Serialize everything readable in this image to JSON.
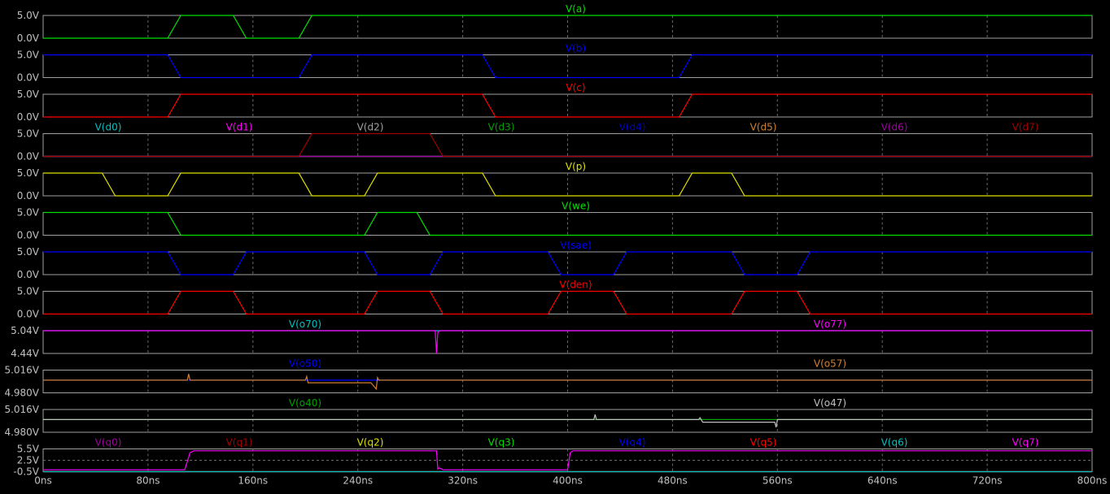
{
  "chart_data": {
    "type": "line",
    "x_unit": "ns",
    "x_range": [
      0,
      800
    ],
    "x_ticks": [
      "0ns",
      "80ns",
      "160ns",
      "240ns",
      "320ns",
      "400ns",
      "480ns",
      "560ns",
      "640ns",
      "720ns",
      "800ns"
    ],
    "grid": true,
    "panes": [
      {
        "y_ticks": [
          "5.0V",
          "0.0V"
        ],
        "ylim": [
          0,
          5
        ],
        "traces": [
          {
            "label": "V(a)",
            "color": "#00e000",
            "x": [
              0,
              95,
              105,
              145,
              155,
              195,
              205,
              800
            ],
            "y": [
              0,
              0,
              5,
              5,
              0,
              0,
              5,
              5
            ]
          }
        ]
      },
      {
        "y_ticks": [
          "5.0V",
          "0.0V"
        ],
        "ylim": [
          0,
          5
        ],
        "traces": [
          {
            "label": "V(b)",
            "color": "#0000ff",
            "x": [
              0,
              95,
              105,
              195,
              205,
              335,
              345,
              485,
              495,
              800
            ],
            "y": [
              5,
              5,
              0,
              0,
              5,
              5,
              0,
              0,
              5,
              5
            ]
          }
        ]
      },
      {
        "y_ticks": [
          "5.0V",
          "0.0V"
        ],
        "ylim": [
          0,
          5
        ],
        "traces": [
          {
            "label": "V(c)",
            "color": "#ff0000",
            "x": [
              0,
              95,
              105,
              335,
              345,
              485,
              495,
              800
            ],
            "y": [
              0,
              0,
              5,
              5,
              0,
              0,
              5,
              5
            ]
          }
        ]
      },
      {
        "y_ticks": [
          "5.0V",
          "0.0V"
        ],
        "ylim": [
          0,
          5
        ],
        "traces": [
          {
            "label": "V(d0)",
            "color": "#00c0c0",
            "x": [
              0,
              800
            ],
            "y": [
              0,
              0
            ]
          },
          {
            "label": "V(d1)",
            "color": "#ff00ff",
            "x": [
              0,
              800
            ],
            "y": [
              0,
              0
            ]
          },
          {
            "label": "V(d2)",
            "color": "#a0a0a0",
            "x": [
              0,
              800
            ],
            "y": [
              0,
              0
            ]
          },
          {
            "label": "V(d3)",
            "color": "#00a000",
            "x": [
              0,
              800
            ],
            "y": [
              0,
              0
            ]
          },
          {
            "label": "V(d4)",
            "color": "#0000c0",
            "x": [
              0,
              800
            ],
            "y": [
              0,
              0
            ]
          },
          {
            "label": "V(d5)",
            "color": "#d08030",
            "x": [
              0,
              800
            ],
            "y": [
              0,
              0
            ]
          },
          {
            "label": "V(d6)",
            "color": "#a000a0",
            "x": [
              0,
              800
            ],
            "y": [
              0,
              0
            ]
          },
          {
            "label": "V(d7)",
            "color": "#a00000",
            "x": [
              0,
              195,
              205,
              295,
              305,
              800
            ],
            "y": [
              0,
              0,
              5,
              5,
              0,
              0
            ]
          }
        ]
      },
      {
        "y_ticks": [
          "5.0V",
          "0.0V"
        ],
        "ylim": [
          0,
          5
        ],
        "traces": [
          {
            "label": "V(p)",
            "color": "#e0e000",
            "x": [
              0,
              45,
              55,
              95,
              105,
              195,
              205,
              245,
              255,
              335,
              345,
              485,
              495,
              525,
              535,
              800
            ],
            "y": [
              5,
              5,
              0,
              0,
              5,
              5,
              0,
              0,
              5,
              5,
              0,
              0,
              5,
              5,
              0,
              0
            ]
          }
        ]
      },
      {
        "y_ticks": [
          "5.0V",
          "0.0V"
        ],
        "ylim": [
          0,
          5
        ],
        "traces": [
          {
            "label": "V(we)",
            "color": "#00e000",
            "x": [
              0,
              95,
              105,
              245,
              255,
              285,
              295,
              800
            ],
            "y": [
              5,
              5,
              0,
              0,
              5,
              5,
              0,
              0
            ]
          }
        ]
      },
      {
        "y_ticks": [
          "5.0V",
          "0.0V"
        ],
        "ylim": [
          0,
          5
        ],
        "traces": [
          {
            "label": "V(sae)",
            "color": "#0000ff",
            "x": [
              0,
              95,
              105,
              145,
              155,
              245,
              255,
              295,
              305,
              385,
              395,
              435,
              445,
              525,
              535,
              575,
              585,
              800
            ],
            "y": [
              5,
              5,
              0,
              0,
              5,
              5,
              0,
              0,
              5,
              5,
              0,
              0,
              5,
              5,
              0,
              0,
              5,
              5
            ]
          }
        ]
      },
      {
        "y_ticks": [
          "5.0V",
          "0.0V"
        ],
        "ylim": [
          0,
          5
        ],
        "traces": [
          {
            "label": "V(den)",
            "color": "#ff0000",
            "x": [
              0,
              95,
              105,
              145,
              155,
              245,
              255,
              295,
              305,
              385,
              395,
              435,
              445,
              525,
              535,
              575,
              585,
              800
            ],
            "y": [
              0,
              0,
              5,
              5,
              0,
              0,
              5,
              5,
              0,
              0,
              5,
              5,
              0,
              0,
              5,
              5,
              0,
              0
            ]
          }
        ]
      },
      {
        "y_ticks": [
          "5.04V",
          "4.44V"
        ],
        "ylim": [
          4.44,
          5.04
        ],
        "traces": [
          {
            "label": "V(o70)",
            "color": "#00c0c0",
            "x": [
              0,
              800
            ],
            "y": [
              5.04,
              5.04
            ]
          },
          {
            "label": "V(o77)",
            "color": "#ff00ff",
            "x": [
              0,
              299,
              300,
              301,
              302,
              303,
              800
            ],
            "y": [
              5.04,
              5.04,
              4.44,
              5.0,
              5.02,
              5.04,
              5.04
            ]
          }
        ]
      },
      {
        "y_ticks": [
          "5.016V",
          "4.980V"
        ],
        "ylim": [
          4.98,
          5.016
        ],
        "traces": [
          {
            "label": "V(o50)",
            "color": "#0000ff",
            "x": [
              0,
              800
            ],
            "y": [
              5.0,
              5.0
            ]
          },
          {
            "label": "V(o57)",
            "color": "#d08030",
            "x": [
              0,
              110,
              111,
              112,
              200,
              201,
              202,
              250,
              254,
              255,
              256,
              800
            ],
            "y": [
              5.0,
              5.0,
              5.01,
              5.0,
              5.0,
              5.006,
              4.996,
              4.996,
              4.986,
              5.004,
              5.0,
              5.0
            ]
          }
        ]
      },
      {
        "y_ticks": [
          "5.016V",
          "4.980V"
        ],
        "ylim": [
          4.98,
          5.016
        ],
        "traces": [
          {
            "label": "V(o40)",
            "color": "#00a000",
            "x": [
              0,
              800
            ],
            "y": [
              5.0,
              5.0
            ]
          },
          {
            "label": "V(o47)",
            "color": "#c0c0c0",
            "x": [
              0,
              420,
              421,
              422,
              500,
              501,
              503,
              558,
              559,
              560,
              562,
              800
            ],
            "y": [
              5.0,
              5.0,
              5.008,
              5.0,
              5.0,
              5.003,
              4.996,
              4.996,
              4.988,
              5.0,
              5.0,
              5.0
            ]
          }
        ]
      },
      {
        "y_ticks": [
          "5.5V",
          "2.5V",
          "-0.5V"
        ],
        "ylim": [
          -0.5,
          5.5
        ],
        "traces": [
          {
            "label": "V(q0)",
            "color": "#a000a0",
            "x": [
              0,
              800
            ],
            "y": [
              -0.5,
              -0.5
            ]
          },
          {
            "label": "V(q1)",
            "color": "#a00000",
            "x": [
              0,
              800
            ],
            "y": [
              -0.5,
              -0.5
            ]
          },
          {
            "label": "V(q2)",
            "color": "#e0e000",
            "x": [
              0,
              800
            ],
            "y": [
              -0.5,
              -0.5
            ]
          },
          {
            "label": "V(q3)",
            "color": "#00e000",
            "x": [
              0,
              800
            ],
            "y": [
              -0.5,
              -0.5
            ]
          },
          {
            "label": "V(q4)",
            "color": "#0000ff",
            "x": [
              0,
              800
            ],
            "y": [
              -0.5,
              -0.5
            ]
          },
          {
            "label": "V(q5)",
            "color": "#ff0000",
            "x": [
              0,
              800
            ],
            "y": [
              -0.5,
              -0.5
            ]
          },
          {
            "label": "V(q6)",
            "color": "#00c0c0",
            "x": [
              0,
              800
            ],
            "y": [
              -0.5,
              -0.5
            ]
          },
          {
            "label": "V(q7)",
            "color": "#ff00ff",
            "x": [
              0,
              108,
              112,
              115,
              300,
              301,
              302,
              305,
              308,
              400,
              402,
              404,
              800
            ],
            "y": [
              0,
              0,
              4.5,
              5.0,
              5.0,
              0.2,
              0.5,
              0,
              0,
              0,
              4.5,
              5.0,
              5.0
            ]
          }
        ]
      }
    ]
  }
}
